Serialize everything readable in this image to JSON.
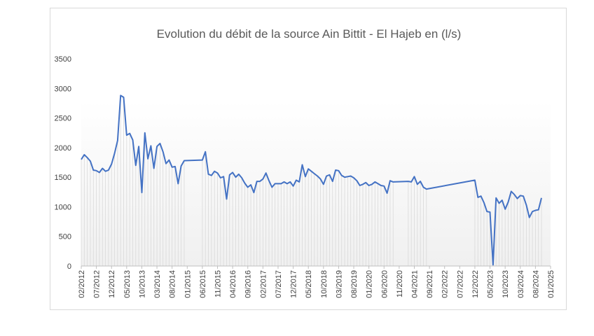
{
  "chart_data": {
    "type": "line",
    "title": "Evolution du débit de la source Ain Bittit - El Hajeb en (l/s)",
    "xlabel": "",
    "ylabel": "",
    "ylim": [
      0,
      3500
    ],
    "yticks": [
      0,
      500,
      1000,
      1500,
      2000,
      2500,
      3000,
      3500
    ],
    "xlim": [
      "2012-02",
      "2025-01"
    ],
    "xticks": [
      "02/2012",
      "07/2012",
      "12/2012",
      "05/2013",
      "10/2013",
      "03/2014",
      "08/2014",
      "01/2015",
      "06/2015",
      "11/2015",
      "04/2016",
      "09/2016",
      "02/2017",
      "07/2017",
      "12/2017",
      "05/2018",
      "10/2018",
      "03/2019",
      "08/2019",
      "01/2020",
      "06/2020",
      "11/2020",
      "04/2021",
      "09/2021",
      "02/2022",
      "07/2022",
      "12/2022",
      "05/2023",
      "10/2023",
      "03/2024",
      "08/2024",
      "01/2025"
    ],
    "grid": false,
    "drop_lines": true,
    "series": [
      {
        "color": "#4472c4",
        "points": [
          [
            "2012-02",
            1800
          ],
          [
            "2012-03",
            1880
          ],
          [
            "2012-04",
            1830
          ],
          [
            "2012-05",
            1770
          ],
          [
            "2012-06",
            1620
          ],
          [
            "2012-07",
            1610
          ],
          [
            "2012-08",
            1580
          ],
          [
            "2012-09",
            1650
          ],
          [
            "2012-10",
            1600
          ],
          [
            "2012-11",
            1620
          ],
          [
            "2012-12",
            1720
          ],
          [
            "2013-01",
            1900
          ],
          [
            "2013-02",
            2120
          ],
          [
            "2013-03",
            2880
          ],
          [
            "2013-04",
            2850
          ],
          [
            "2013-05",
            2210
          ],
          [
            "2013-06",
            2240
          ],
          [
            "2013-07",
            2130
          ],
          [
            "2013-08",
            1700
          ],
          [
            "2013-09",
            2020
          ],
          [
            "2013-10",
            1240
          ],
          [
            "2013-11",
            2250
          ],
          [
            "2013-12",
            1810
          ],
          [
            "2014-01",
            2030
          ],
          [
            "2014-02",
            1650
          ],
          [
            "2014-03",
            2020
          ],
          [
            "2014-04",
            2070
          ],
          [
            "2014-05",
            1930
          ],
          [
            "2014-06",
            1730
          ],
          [
            "2014-07",
            1790
          ],
          [
            "2014-08",
            1670
          ],
          [
            "2014-09",
            1680
          ],
          [
            "2014-10",
            1390
          ],
          [
            "2014-11",
            1690
          ],
          [
            "2014-12",
            1780
          ],
          [
            "2015-06",
            1790
          ],
          [
            "2015-07",
            1930
          ],
          [
            "2015-08",
            1550
          ],
          [
            "2015-09",
            1530
          ],
          [
            "2015-10",
            1600
          ],
          [
            "2015-11",
            1570
          ],
          [
            "2015-12",
            1490
          ],
          [
            "2016-01",
            1510
          ],
          [
            "2016-02",
            1130
          ],
          [
            "2016-03",
            1540
          ],
          [
            "2016-04",
            1580
          ],
          [
            "2016-05",
            1500
          ],
          [
            "2016-06",
            1550
          ],
          [
            "2016-07",
            1490
          ],
          [
            "2016-08",
            1400
          ],
          [
            "2016-09",
            1330
          ],
          [
            "2016-10",
            1370
          ],
          [
            "2016-11",
            1240
          ],
          [
            "2016-12",
            1430
          ],
          [
            "2017-01",
            1430
          ],
          [
            "2017-02",
            1470
          ],
          [
            "2017-03",
            1570
          ],
          [
            "2017-04",
            1440
          ],
          [
            "2017-05",
            1330
          ],
          [
            "2017-06",
            1390
          ],
          [
            "2017-07",
            1390
          ],
          [
            "2017-08",
            1390
          ],
          [
            "2017-09",
            1420
          ],
          [
            "2017-10",
            1390
          ],
          [
            "2017-11",
            1420
          ],
          [
            "2017-12",
            1350
          ],
          [
            "2018-01",
            1450
          ],
          [
            "2018-02",
            1420
          ],
          [
            "2018-03",
            1710
          ],
          [
            "2018-04",
            1510
          ],
          [
            "2018-05",
            1640
          ],
          [
            "2018-06",
            1600
          ],
          [
            "2018-07",
            1560
          ],
          [
            "2018-08",
            1520
          ],
          [
            "2018-09",
            1470
          ],
          [
            "2018-10",
            1380
          ],
          [
            "2018-11",
            1520
          ],
          [
            "2018-12",
            1540
          ],
          [
            "2019-01",
            1430
          ],
          [
            "2019-02",
            1620
          ],
          [
            "2019-03",
            1610
          ],
          [
            "2019-04",
            1530
          ],
          [
            "2019-05",
            1500
          ],
          [
            "2019-06",
            1510
          ],
          [
            "2019-07",
            1520
          ],
          [
            "2019-08",
            1490
          ],
          [
            "2019-09",
            1440
          ],
          [
            "2019-10",
            1360
          ],
          [
            "2019-11",
            1380
          ],
          [
            "2019-12",
            1410
          ],
          [
            "2020-01",
            1360
          ],
          [
            "2020-02",
            1380
          ],
          [
            "2020-03",
            1420
          ],
          [
            "2020-04",
            1390
          ],
          [
            "2020-05",
            1360
          ],
          [
            "2020-06",
            1350
          ],
          [
            "2020-07",
            1230
          ],
          [
            "2020-08",
            1440
          ],
          [
            "2020-09",
            1420
          ],
          [
            "2021-02",
            1430
          ],
          [
            "2021-03",
            1420
          ],
          [
            "2021-04",
            1510
          ],
          [
            "2021-05",
            1380
          ],
          [
            "2021-06",
            1430
          ],
          [
            "2021-07",
            1330
          ],
          [
            "2021-08",
            1300
          ],
          [
            "2022-12",
            1450
          ],
          [
            "2023-01",
            1160
          ],
          [
            "2023-02",
            1180
          ],
          [
            "2023-03",
            1070
          ],
          [
            "2023-04",
            920
          ],
          [
            "2023-05",
            910
          ],
          [
            "2023-06",
            20
          ],
          [
            "2023-07",
            1150
          ],
          [
            "2023-08",
            1060
          ],
          [
            "2023-09",
            1110
          ],
          [
            "2023-10",
            960
          ],
          [
            "2023-11",
            1080
          ],
          [
            "2023-12",
            1260
          ],
          [
            "2024-01",
            1210
          ],
          [
            "2024-02",
            1140
          ],
          [
            "2024-03",
            1190
          ],
          [
            "2024-04",
            1180
          ],
          [
            "2024-05",
            1030
          ],
          [
            "2024-06",
            820
          ],
          [
            "2024-07",
            920
          ],
          [
            "2024-08",
            940
          ],
          [
            "2024-09",
            950
          ],
          [
            "2024-10",
            1150
          ]
        ]
      }
    ]
  }
}
